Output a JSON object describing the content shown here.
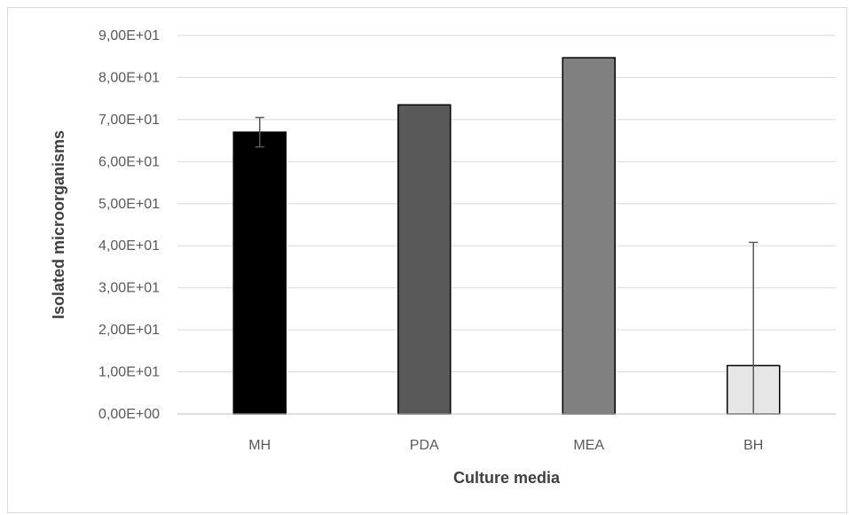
{
  "chart_data": {
    "type": "bar",
    "title": "",
    "xlabel": "Culture media",
    "ylabel": "Isolated microorganisms",
    "categories": [
      "MH",
      "PDA",
      "MEA",
      "BH"
    ],
    "values": [
      67.0,
      73.5,
      84.7,
      11.5
    ],
    "error_bars": [
      3.5,
      0,
      0,
      29.3
    ],
    "bar_colors": [
      "#000000",
      "#595959",
      "#808080",
      "#e6e6e6"
    ],
    "ylim": [
      0,
      90
    ],
    "y_ticks": [
      0,
      10,
      20,
      30,
      40,
      50,
      60,
      70,
      80,
      90
    ],
    "y_tick_labels": [
      "0,00E+00",
      "1,00E+01",
      "2,00E+01",
      "3,00E+01",
      "4,00E+01",
      "5,00E+01",
      "6,00E+01",
      "7,00E+01",
      "8,00E+01",
      "9,00E+01"
    ],
    "grid": true,
    "legend": "none"
  }
}
